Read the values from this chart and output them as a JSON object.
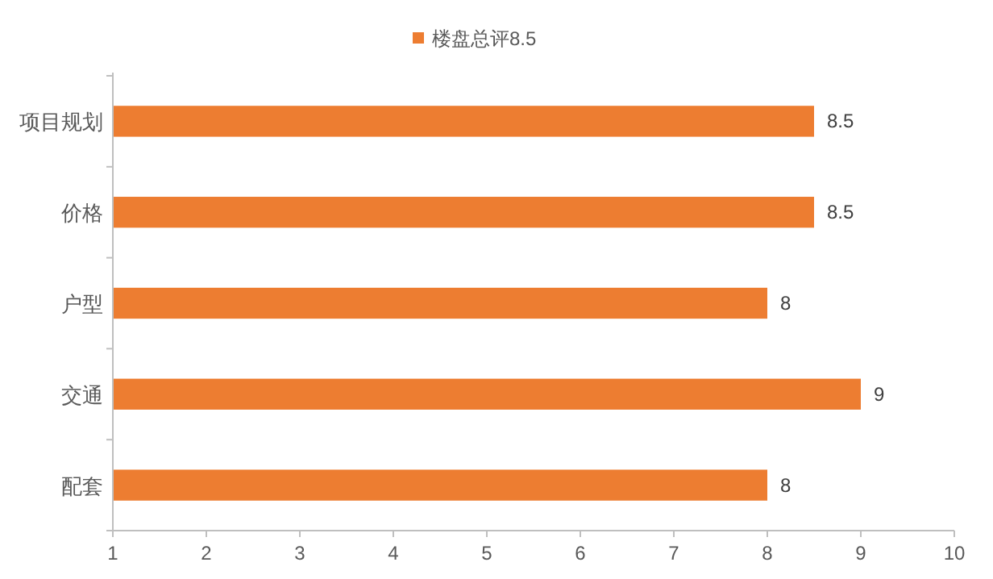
{
  "chart_data": {
    "type": "bar",
    "orientation": "horizontal",
    "categories": [
      "项目规划",
      "价格",
      "户型",
      "交通",
      "配套"
    ],
    "series": [
      {
        "name": "楼盘总评8.5",
        "color": "#ed7d31",
        "values": [
          8.5,
          8.5,
          8,
          9,
          8
        ]
      }
    ],
    "xlim": [
      1,
      10
    ],
    "xticks": [
      1,
      2,
      3,
      4,
      5,
      6,
      7,
      8,
      9,
      10
    ],
    "data_labels": true,
    "legend": "top",
    "grid": false
  }
}
